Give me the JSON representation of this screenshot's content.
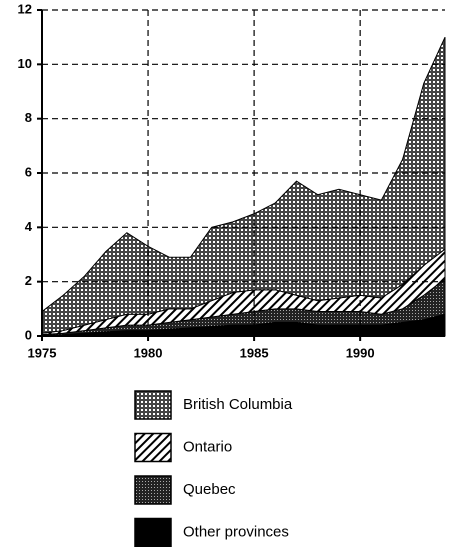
{
  "chart_data": {
    "type": "stacked-area",
    "x": [
      1975,
      1976,
      1977,
      1978,
      1979,
      1980,
      1981,
      1982,
      1983,
      1984,
      1985,
      1986,
      1987,
      1988,
      1989,
      1990,
      1991,
      1992,
      1993,
      1994
    ],
    "series": [
      {
        "name": "Other provinces",
        "color": "#000000",
        "pattern": "solid",
        "values": [
          0.02,
          0.05,
          0.1,
          0.15,
          0.2,
          0.2,
          0.25,
          0.3,
          0.35,
          0.4,
          0.4,
          0.5,
          0.5,
          0.4,
          0.4,
          0.4,
          0.4,
          0.5,
          0.6,
          0.8
        ]
      },
      {
        "name": "Quebec",
        "color": "#000000",
        "pattern": "dense",
        "values": [
          0.03,
          0.05,
          0.1,
          0.15,
          0.2,
          0.2,
          0.25,
          0.3,
          0.35,
          0.4,
          0.5,
          0.5,
          0.5,
          0.5,
          0.5,
          0.5,
          0.4,
          0.5,
          0.9,
          1.3
        ]
      },
      {
        "name": "Ontario",
        "color": "#000000",
        "pattern": "hatch",
        "values": [
          0.05,
          0.1,
          0.2,
          0.3,
          0.4,
          0.4,
          0.5,
          0.4,
          0.6,
          0.8,
          0.8,
          0.7,
          0.5,
          0.4,
          0.5,
          0.6,
          0.6,
          0.9,
          1.1,
          1.1
        ]
      },
      {
        "name": "British Columbia",
        "color": "#000000",
        "pattern": "grid",
        "values": [
          0.8,
          1.3,
          1.8,
          2.5,
          3.0,
          2.5,
          1.9,
          1.9,
          2.7,
          2.6,
          2.8,
          3.2,
          4.2,
          3.9,
          4.0,
          3.7,
          3.6,
          4.6,
          6.7,
          7.8
        ]
      }
    ],
    "xlim": [
      1975,
      1994
    ],
    "xticks": [
      1975,
      1980,
      1985,
      1990
    ],
    "ylim": [
      0,
      12
    ],
    "yticks": [
      0,
      2,
      4,
      6,
      8,
      10,
      12
    ],
    "grid": true
  }
}
